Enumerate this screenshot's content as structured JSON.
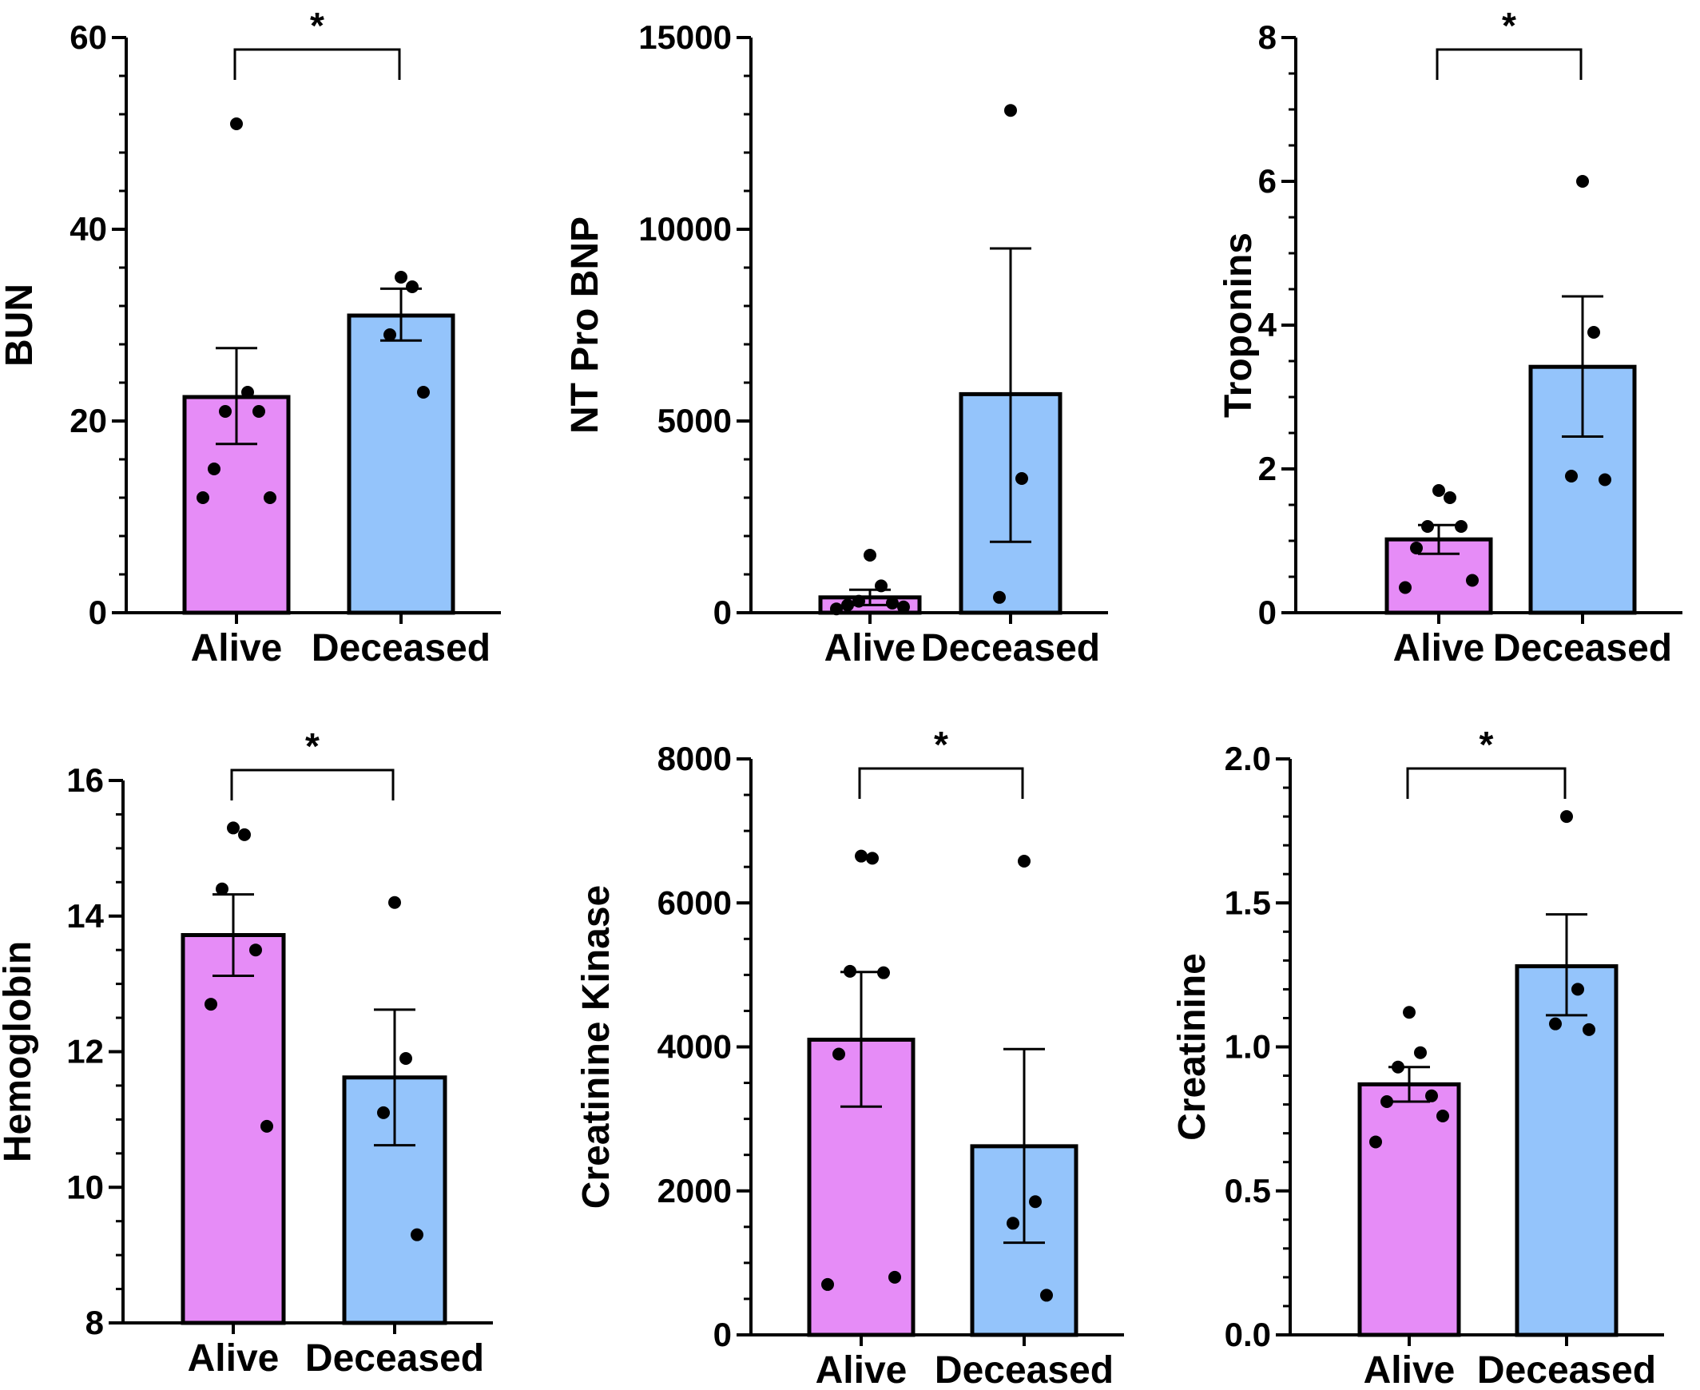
{
  "colors": {
    "alive": "#e68cf7",
    "deceased": "#94c4fb",
    "stroke": "#000000"
  },
  "chart_data": [
    {
      "type": "bar",
      "ylabel": "BUN",
      "categories": [
        "Alive",
        "Deceased"
      ],
      "ylim": [
        0,
        60
      ],
      "yticks": [
        "0",
        "20",
        "40",
        "60"
      ],
      "minor_ticks_per_interval": 5,
      "values": [
        22.5,
        31
      ],
      "sem": [
        [
          17.6,
          27.6
        ],
        [
          28.4,
          33.8
        ]
      ],
      "points": [
        [
          51,
          23,
          21,
          21,
          15,
          12,
          12
        ],
        [
          35,
          34,
          29,
          23
        ]
      ],
      "significance": "*"
    },
    {
      "type": "bar",
      "ylabel": "NT Pro BNP",
      "categories": [
        "Alive",
        "Deceased"
      ],
      "ylim": [
        0,
        15000
      ],
      "yticks": [
        "0",
        "5000",
        "10000",
        "15000"
      ],
      "minor_ticks_per_interval": 5,
      "values": [
        400,
        5700
      ],
      "sem": [
        [
          200,
          600
        ],
        [
          1850,
          9500
        ]
      ],
      "points": [
        [
          1500,
          700,
          300,
          250,
          200,
          150,
          100
        ],
        [
          13100,
          3500,
          400
        ]
      ],
      "significance": ""
    },
    {
      "type": "bar",
      "ylabel": "Troponins",
      "categories": [
        "Alive",
        "Deceased"
      ],
      "ylim": [
        0,
        8
      ],
      "yticks": [
        "0",
        "2",
        "4",
        "6",
        "8"
      ],
      "minor_ticks_per_interval": 4,
      "values": [
        1.02,
        3.42
      ],
      "sem": [
        [
          0.82,
          1.22
        ],
        [
          2.45,
          4.4
        ]
      ],
      "points": [
        [
          1.7,
          1.6,
          1.2,
          1.2,
          0.9,
          0.45,
          0.35
        ],
        [
          6.0,
          3.9,
          1.9,
          1.85
        ]
      ],
      "significance": "*"
    },
    {
      "type": "bar",
      "ylabel": "Hemoglobin",
      "categories": [
        "Alive",
        "Deceased"
      ],
      "ylim": [
        8,
        16
      ],
      "yticks": [
        "8",
        "10",
        "12",
        "14",
        "16"
      ],
      "minor_ticks_per_interval": 4,
      "values": [
        13.72,
        11.62
      ],
      "sem": [
        [
          13.12,
          14.32
        ],
        [
          10.62,
          12.62
        ]
      ],
      "points": [
        [
          15.3,
          15.2,
          14.4,
          13.5,
          12.7,
          10.9
        ],
        [
          14.2,
          11.9,
          11.1,
          9.3
        ]
      ],
      "significance": "*"
    },
    {
      "type": "bar",
      "ylabel": "Creatinine  Kinase",
      "categories": [
        "Alive",
        "Deceased"
      ],
      "ylim": [
        0,
        8000
      ],
      "yticks": [
        "0",
        "2000",
        "4000",
        "6000",
        "8000"
      ],
      "minor_ticks_per_interval": 4,
      "values": [
        4100,
        2620
      ],
      "sem": [
        [
          3170,
          5040
        ],
        [
          1280,
          3970
        ]
      ],
      "points": [
        [
          6650,
          6620,
          5050,
          5030,
          3900,
          800,
          700
        ],
        [
          6580,
          1850,
          1550,
          550
        ]
      ],
      "significance": "*"
    },
    {
      "type": "bar",
      "ylabel": "Creatinine",
      "categories": [
        "Alive",
        "Deceased"
      ],
      "ylim": [
        0.0,
        2.0
      ],
      "yticks": [
        "0.0",
        "0.5",
        "1.0",
        "1.5",
        "2.0"
      ],
      "minor_ticks_per_interval": 5,
      "values": [
        0.87,
        1.28
      ],
      "sem": [
        [
          0.81,
          0.93
        ],
        [
          1.11,
          1.46
        ]
      ],
      "points": [
        [
          1.12,
          0.98,
          0.93,
          0.83,
          0.81,
          0.76,
          0.67
        ],
        [
          1.8,
          1.2,
          1.08,
          1.06
        ]
      ],
      "significance": "*"
    }
  ]
}
